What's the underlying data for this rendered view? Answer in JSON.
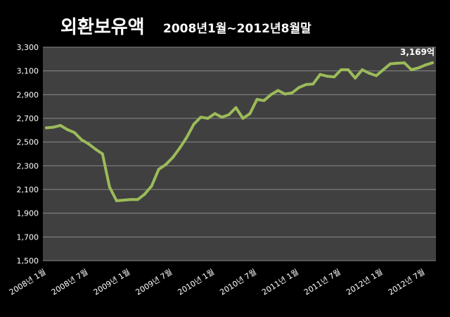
{
  "chart_data": {
    "type": "line",
    "title": "외환보유액",
    "subtitle": "2008년1월~2012년8월말",
    "xlabel": "",
    "ylabel": "",
    "ylim": [
      1500,
      3300
    ],
    "yticks": [
      "1,500",
      "1,700",
      "1,900",
      "2,100",
      "2,300",
      "2,500",
      "2,700",
      "2,900",
      "3,100",
      "3,300"
    ],
    "ytick_values": [
      1500,
      1700,
      1900,
      2100,
      2300,
      2500,
      2700,
      2900,
      3100,
      3300
    ],
    "xtick_labels": [
      "2008년 1월",
      "2008년 7월",
      "2009년 1월",
      "2009년 7월",
      "2010년 1월",
      "2010년 7월",
      "2011년 1월",
      "2011년 7월",
      "2012년 1월",
      "2012년 7월"
    ],
    "xtick_index": [
      0,
      6,
      12,
      18,
      24,
      30,
      36,
      42,
      48,
      54
    ],
    "grid": true,
    "legend": "none",
    "line_color": "#9BBB59",
    "plot_bg": "#404040",
    "end_label": "3,169억",
    "series": [
      {
        "values": [
          2620,
          2625,
          2640,
          2605,
          2580,
          2520,
          2485,
          2440,
          2400,
          2120,
          2005,
          2010,
          2015,
          2015,
          2060,
          2130,
          2270,
          2310,
          2370,
          2450,
          2540,
          2650,
          2710,
          2700,
          2740,
          2710,
          2730,
          2790,
          2700,
          2740,
          2860,
          2850,
          2900,
          2935,
          2905,
          2915,
          2960,
          2985,
          2990,
          3070,
          3055,
          3050,
          3110,
          3110,
          3040,
          3110,
          3080,
          3060,
          3110,
          3160,
          3165,
          3168,
          3110,
          3125,
          3150,
          3169
        ]
      }
    ]
  }
}
